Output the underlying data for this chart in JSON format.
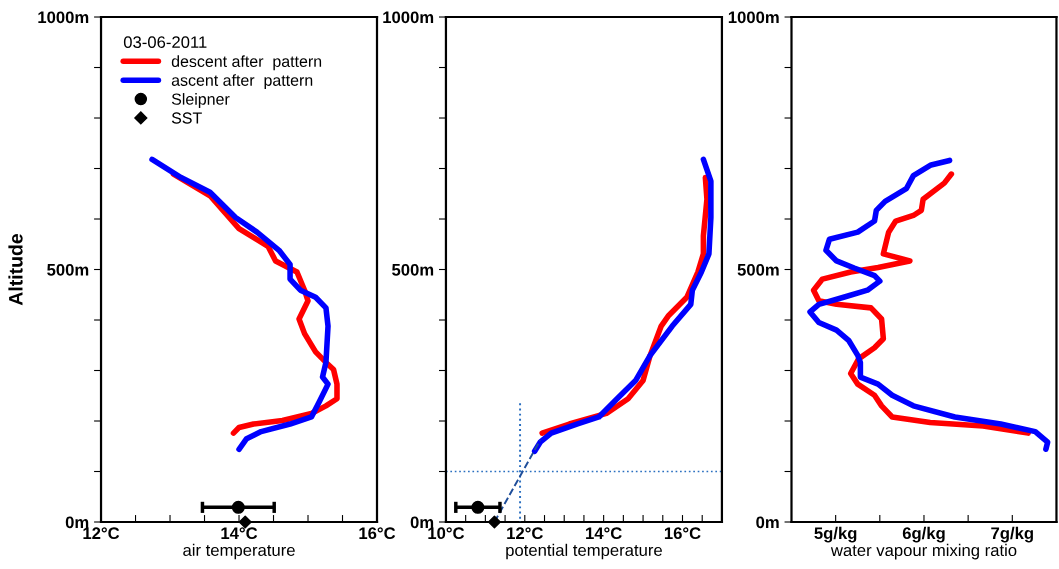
{
  "chart_data": [
    {
      "type": "line",
      "xlabel": "air temperature",
      "ylabel": "Altitude",
      "legend": "top left",
      "legend_title": "03-06-2011",
      "xlim": [
        12,
        16
      ],
      "ylim": [
        0,
        1000
      ],
      "xticks": [
        {
          "value": 12,
          "label": "12°C"
        },
        {
          "value": 12.5,
          "label": null
        },
        {
          "value": 13,
          "label": null
        },
        {
          "value": 13.5,
          "label": null
        },
        {
          "value": 14,
          "label": "14°C"
        },
        {
          "value": 14.5,
          "label": null
        },
        {
          "value": 15,
          "label": null
        },
        {
          "value": 15.5,
          "label": null
        },
        {
          "value": 16,
          "label": "16°C"
        }
      ],
      "yticks": [
        {
          "value": 0,
          "label": "0m"
        },
        {
          "value": 100,
          "label": null
        },
        {
          "value": 200,
          "label": null
        },
        {
          "value": 300,
          "label": null
        },
        {
          "value": 400,
          "label": null
        },
        {
          "value": 500,
          "label": "500m"
        },
        {
          "value": 600,
          "label": null
        },
        {
          "value": 700,
          "label": null
        },
        {
          "value": 800,
          "label": null
        },
        {
          "value": 900,
          "label": null
        },
        {
          "value": 1000,
          "label": "1000m"
        }
      ],
      "series": [
        {
          "name": "descent after  pattern",
          "color": "#ff0000",
          "x": [
            13.05,
            13.58,
            14.0,
            14.42,
            14.53,
            14.84,
            14.95,
            15.0,
            14.87,
            14.95,
            15.11,
            15.26,
            15.37,
            15.42,
            15.42,
            15.26,
            15.05,
            14.63,
            14.21,
            14.0,
            13.92
          ],
          "values": [
            689,
            646,
            581,
            546,
            517,
            495,
            459,
            438,
            402,
            373,
            337,
            316,
            302,
            273,
            244,
            230,
            215,
            201,
            194,
            187,
            176
          ]
        },
        {
          "name": "ascent after  pattern",
          "color": "#0000ff",
          "x": [
            12.74,
            13.16,
            13.58,
            13.95,
            14.26,
            14.58,
            14.74,
            14.74,
            14.89,
            15.11,
            15.26,
            15.29,
            15.26,
            15.21,
            15.29,
            15.16,
            15.05,
            14.74,
            14.32,
            14.11,
            14.0
          ],
          "values": [
            718,
            682,
            653,
            603,
            574,
            538,
            510,
            481,
            459,
            445,
            424,
            388,
            316,
            287,
            273,
            237,
            208,
            194,
            179,
            165,
            144
          ]
        },
        {
          "name": "Sleipner",
          "type": "scatter",
          "marker": "circle",
          "color": "#000000",
          "x": [
            13.99
          ],
          "values": [
            29
          ],
          "xerrors": [
            [
              13.47,
              14.51
            ]
          ]
        },
        {
          "name": "SST",
          "type": "scatter",
          "marker": "diamond",
          "color": "#000000",
          "x": [
            14.09
          ],
          "values": [
            0
          ]
        }
      ]
    },
    {
      "type": "line",
      "xlabel": "potential temperature",
      "xlim": [
        10,
        17
      ],
      "ylim": [
        0,
        1000
      ],
      "xticks": [
        {
          "value": 10,
          "label": "10°C"
        },
        {
          "value": 10.5,
          "label": null
        },
        {
          "value": 11,
          "label": null
        },
        {
          "value": 11.5,
          "label": null
        },
        {
          "value": 12,
          "label": "12°C"
        },
        {
          "value": 12.5,
          "label": null
        },
        {
          "value": 13,
          "label": null
        },
        {
          "value": 13.5,
          "label": null
        },
        {
          "value": 14,
          "label": "14°C"
        },
        {
          "value": 14.5,
          "label": null
        },
        {
          "value": 15,
          "label": null
        },
        {
          "value": 15.5,
          "label": null
        },
        {
          "value": 16,
          "label": "16°C"
        },
        {
          "value": 16.5,
          "label": null
        }
      ],
      "yticks": [
        {
          "value": 0,
          "label": "0m"
        },
        {
          "value": 100,
          "label": null
        },
        {
          "value": 200,
          "label": null
        },
        {
          "value": 300,
          "label": null
        },
        {
          "value": 400,
          "label": null
        },
        {
          "value": 500,
          "label": "500m"
        },
        {
          "value": 600,
          "label": null
        },
        {
          "value": 700,
          "label": null
        },
        {
          "value": 800,
          "label": null
        },
        {
          "value": 900,
          "label": null
        },
        {
          "value": 1000,
          "label": "1000m"
        }
      ],
      "ref_lines": [
        {
          "axis": "y",
          "value": 100,
          "color": "#2a6fc0",
          "line_style": "dotted"
        }
      ],
      "series": [
        {
          "color": "#ff0000",
          "x": [
            16.58,
            16.62,
            16.53,
            16.53,
            16.39,
            16.11,
            15.65,
            15.46,
            15.18,
            15.0,
            14.62,
            14.07,
            13.13,
            12.44
          ],
          "values": [
            682,
            639,
            567,
            531,
            495,
            445,
            409,
            388,
            330,
            280,
            244,
            215,
            194,
            176
          ]
        },
        {
          "color": "#0000ff",
          "x": [
            16.53,
            16.72,
            16.72,
            16.67,
            16.48,
            16.25,
            16.21,
            15.74,
            15.18,
            14.81,
            14.34,
            13.88,
            13.32,
            12.67,
            12.39,
            12.25
          ],
          "values": [
            718,
            675,
            603,
            531,
            495,
            459,
            431,
            388,
            330,
            280,
            244,
            208,
            194,
            176,
            158,
            140
          ]
        },
        {
          "color": "#2a6fc0",
          "line_style": "dotted",
          "x": [
            11.88,
            11.88
          ],
          "values": [
            235,
            0
          ]
        },
        {
          "color": "#1f4e9a",
          "line_style": "dashed",
          "x": [
            11.23,
            12.39
          ],
          "values": [
            0,
            162
          ]
        },
        {
          "type": "scatter",
          "marker": "circle",
          "color": "#000000",
          "x": [
            10.81
          ],
          "values": [
            29
          ],
          "xerrors": [
            [
              10.25,
              11.37
            ]
          ]
        },
        {
          "type": "scatter",
          "marker": "diamond",
          "color": "#000000",
          "x": [
            11.23
          ],
          "values": [
            0
          ]
        }
      ]
    },
    {
      "type": "line",
      "xlabel": "water vapour mixing ratio",
      "xlim": [
        4.5,
        7.5
      ],
      "ylim": [
        0,
        1000
      ],
      "xticks": [
        {
          "value": 5,
          "label": "5g/kg"
        },
        {
          "value": 5.5,
          "label": null
        },
        {
          "value": 6,
          "label": "6g/kg"
        },
        {
          "value": 6.5,
          "label": null
        },
        {
          "value": 7,
          "label": "7g/kg"
        }
      ],
      "yticks": [
        {
          "value": 0,
          "label": "0m"
        },
        {
          "value": 100,
          "label": null
        },
        {
          "value": 200,
          "label": null
        },
        {
          "value": 300,
          "label": null
        },
        {
          "value": 400,
          "label": null
        },
        {
          "value": 500,
          "label": "500m"
        },
        {
          "value": 600,
          "label": null
        },
        {
          "value": 700,
          "label": null
        },
        {
          "value": 800,
          "label": null
        },
        {
          "value": 900,
          "label": null
        },
        {
          "value": 1000,
          "label": "1000m"
        }
      ],
      "series": [
        {
          "color": "#ff0000",
          "x": [
            6.31,
            6.23,
            5.99,
            5.97,
            5.88,
            5.68,
            5.6,
            5.54,
            5.84,
            5.48,
            5.17,
            4.85,
            4.75,
            4.81,
            5.01,
            5.4,
            5.52,
            5.54,
            5.44,
            5.26,
            5.17,
            5.25,
            5.44,
            5.52,
            5.64,
            6.07,
            6.67,
            7.18
          ],
          "values": [
            689,
            671,
            639,
            617,
            607,
            596,
            574,
            531,
            517,
            504,
            495,
            481,
            459,
            438,
            431,
            424,
            402,
            363,
            345,
            323,
            294,
            273,
            251,
            230,
            208,
            197,
            190,
            176
          ]
        },
        {
          "color": "#0000ff",
          "x": [
            6.29,
            6.08,
            5.88,
            5.8,
            5.56,
            5.46,
            5.44,
            5.25,
            4.93,
            4.89,
            5.01,
            5.21,
            5.44,
            5.5,
            5.36,
            5.09,
            4.81,
            4.71,
            4.81,
            5.01,
            5.15,
            5.25,
            5.28,
            5.28,
            5.48,
            5.64,
            5.88,
            6.35,
            6.87,
            7.26,
            7.4,
            7.38
          ],
          "values": [
            716,
            707,
            686,
            660,
            635,
            617,
            596,
            574,
            560,
            538,
            517,
            503,
            488,
            477,
            459,
            445,
            431,
            416,
            395,
            380,
            359,
            330,
            316,
            287,
            273,
            251,
            230,
            208,
            194,
            179,
            158,
            144
          ]
        }
      ]
    }
  ]
}
